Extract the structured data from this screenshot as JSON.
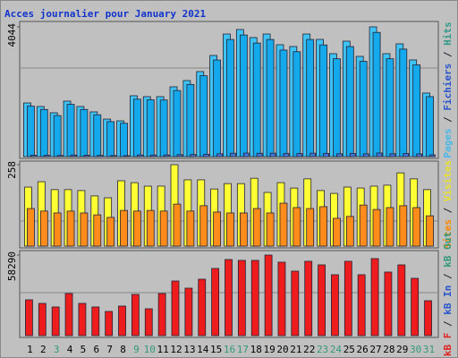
{
  "chart_data": {
    "type": "bar",
    "title": "Acces journalier pour January 2021",
    "categories": [
      "1",
      "2",
      "3",
      "4",
      "5",
      "6",
      "7",
      "8",
      "9",
      "10",
      "11",
      "12",
      "13",
      "14",
      "15",
      "16",
      "17",
      "18",
      "19",
      "20",
      "21",
      "22",
      "23",
      "24",
      "25",
      "26",
      "27",
      "28",
      "29",
      "30",
      "31"
    ],
    "category_colors": [
      "#000000",
      "#000000",
      "#33997a",
      "#000000",
      "#000000",
      "#000000",
      "#000000",
      "#000000",
      "#33997a",
      "#33997a",
      "#000000",
      "#000000",
      "#000000",
      "#000000",
      "#000000",
      "#33997a",
      "#33997a",
      "#000000",
      "#000000",
      "#000000",
      "#000000",
      "#000000",
      "#33997a",
      "#33997a",
      "#000000",
      "#000000",
      "#000000",
      "#000000",
      "#000000",
      "#33997a",
      "#33997a"
    ],
    "legend_separator": " / ",
    "panels": [
      {
        "ylim": [
          0,
          4044
        ],
        "yticks": [
          4044
        ],
        "legend": [
          {
            "name": "Pages",
            "color": "#4ab8e8"
          },
          {
            "name": "Fichiers",
            "color": "#2a55cc"
          },
          {
            "name": "Hits",
            "color": "#33998a"
          }
        ],
        "series": [
          {
            "color": "#3fc3f5",
            "values": [
              1673,
              1562,
              1367,
              1729,
              1562,
              1395,
              1171,
              1115,
              1897,
              1869,
              1869,
              2176,
              2371,
              2650,
              3152,
              3821,
              3961,
              3710,
              3821,
              3487,
              3431,
              3821,
              3654,
              3208,
              3598,
              3124,
              4044,
              3208,
              3515,
              3013,
              1981
            ]
          },
          {
            "color": "#14a8ec",
            "values": [
              1573,
              1470,
              1280,
              1630,
              1470,
              1305,
              1090,
              1040,
              1790,
              1770,
              1765,
              2060,
              2250,
              2520,
              3010,
              3650,
              3790,
              3540,
              3650,
              3320,
              3270,
              3650,
              3480,
              3050,
              3430,
              2970,
              3870,
              3050,
              3350,
              2860,
              1870
            ]
          },
          {
            "color": "#4477dd",
            "values": [
              45,
              41,
              37,
              48,
              44,
              39,
              33,
              30,
              52,
              50,
              51,
              60,
              66,
              74,
              88,
              105,
              110,
              103,
              106,
              96,
              95,
              106,
              101,
              89,
              100,
              87,
              112,
              89,
              98,
              84,
              55
            ]
          }
        ]
      },
      {
        "ylim": [
          0,
          258
        ],
        "yticks": [
          258
        ],
        "legend": [
          {
            "name": "Sites",
            "color": "#ff8800"
          },
          {
            "name": "Visites",
            "color": "#e8e030"
          }
        ],
        "series": [
          {
            "color": "#ffff33",
            "values": [
              187,
              204,
              179,
              179,
              176,
              159,
              153,
              207,
              201,
              190,
              190,
              258,
              210,
              210,
              181,
              198,
              198,
              215,
              170,
              201,
              184,
              213,
              176,
              167,
              187,
              184,
              190,
              193,
              232,
              213,
              179
            ]
          },
          {
            "color": "#ff8c1a",
            "values": [
              119,
              111,
              105,
              111,
              105,
              99,
              91,
              113,
              111,
              113,
              111,
              133,
              111,
              128,
              108,
              105,
              105,
              119,
              105,
              136,
              122,
              119,
              125,
              88,
              94,
              130,
              116,
              122,
              128,
              122,
              96
            ]
          }
        ]
      },
      {
        "ylim": [
          0,
          58290
        ],
        "yticks": [
          58290
        ],
        "legend": [
          {
            "name": "kB F",
            "color": "#dd2222"
          },
          {
            "name": "kB In",
            "color": "#2a55cc"
          },
          {
            "name": "kB Out",
            "color": "#33997a"
          }
        ],
        "series": [
          {
            "color": "#ee1c1c",
            "values": [
              25920,
              23328,
              20736,
              30456,
              23328,
              20736,
              17496,
              21384,
              29808,
              19440,
              30456,
              39528,
              34344,
              40824,
              48600,
              55080,
              54432,
              54432,
              58290,
              53136,
              46656,
              53784,
              51192,
              44064,
              53784,
              44064,
              55728,
              46008,
              51192,
              41472,
              25272
            ]
          }
        ]
      }
    ]
  }
}
